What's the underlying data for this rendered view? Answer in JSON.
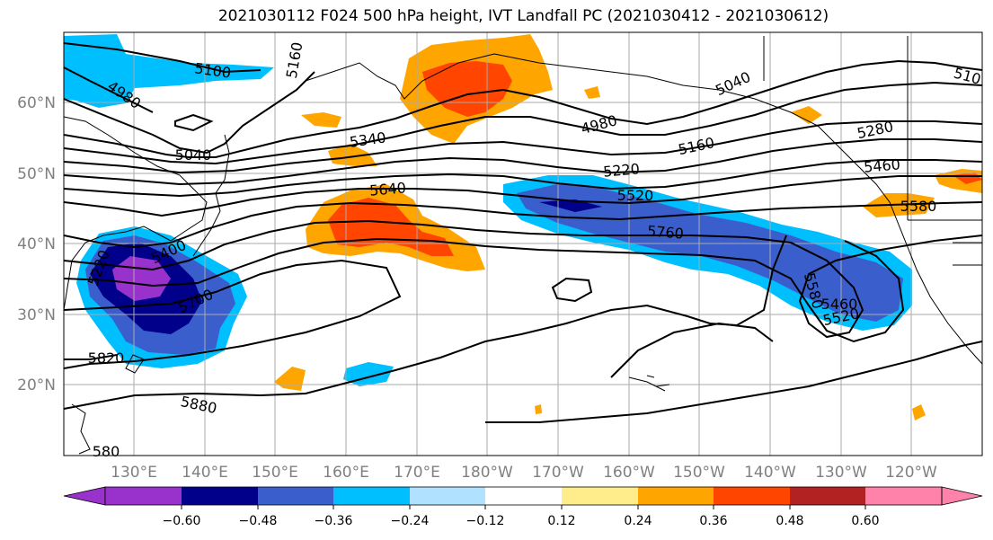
{
  "title": "2021030112 F024 500 hPa height, IVT Landfall PC (2021030412 - 2021030612)",
  "map": {
    "lat_labels": [
      "60°N",
      "50°N",
      "40°N",
      "30°N",
      "20°N"
    ],
    "lon_labels": [
      "130°E",
      "140°E",
      "150°E",
      "160°E",
      "170°E",
      "180°W",
      "170°W",
      "160°W",
      "150°W",
      "140°W",
      "130°W",
      "120°W"
    ],
    "contour_labels": [
      "5100",
      "4980",
      "5160",
      "5040",
      "5340",
      "5640",
      "5400",
      "5700",
      "5820",
      "5880",
      "4980",
      "5040",
      "5160",
      "5220",
      "5520",
      "5760",
      "5280",
      "5460",
      "5580",
      "5580",
      "5460",
      "5520",
      "510",
      "5220",
      "580"
    ]
  },
  "colorbar": {
    "ticks": [
      "−0.60",
      "−0.48",
      "−0.36",
      "−0.24",
      "−0.12",
      "0.12",
      "0.24",
      "0.36",
      "0.48",
      "0.60"
    ],
    "colors": [
      "#9932cc",
      "#00008b",
      "#3a5fcd",
      "#00bfff",
      "#b0e2ff",
      "#ffffff",
      "#ffec8b",
      "#ffa500",
      "#ff4500",
      "#b22222",
      "#ff82ab"
    ]
  }
}
